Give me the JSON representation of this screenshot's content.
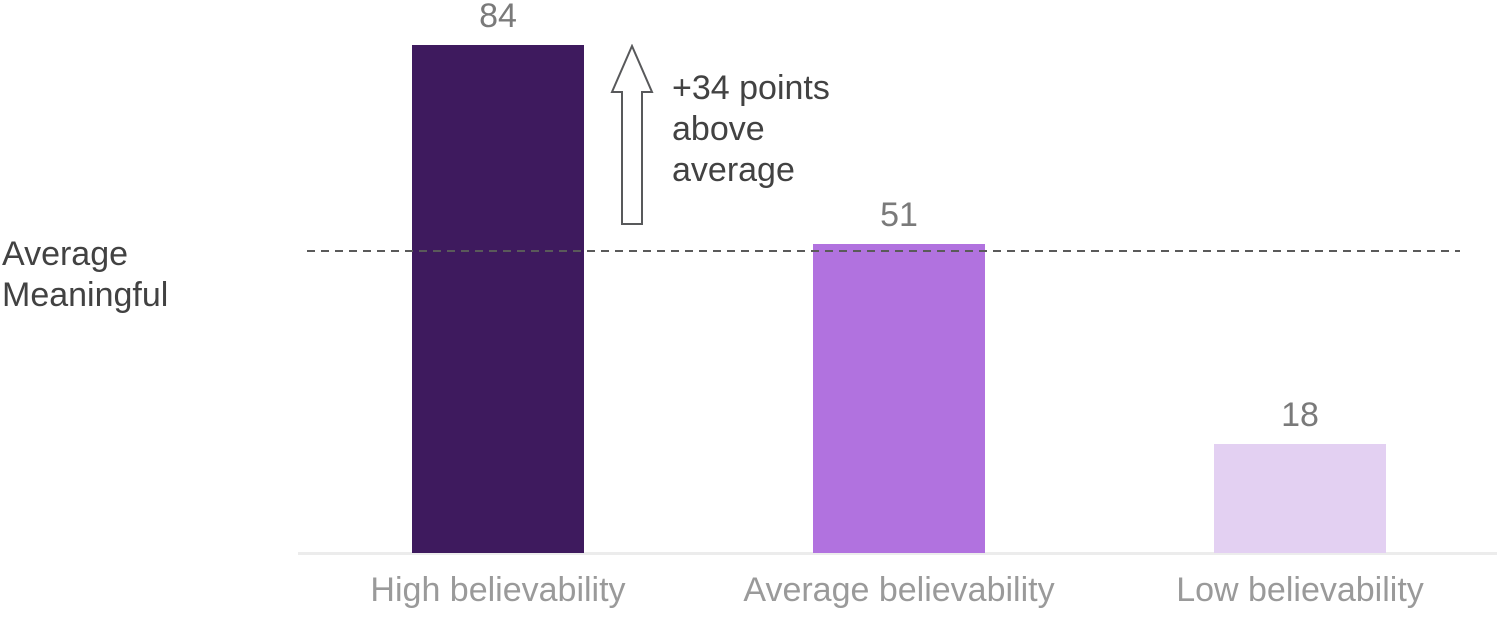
{
  "chart_data": {
    "type": "bar",
    "title": "",
    "xlabel": "",
    "ylabel": "",
    "categories": [
      "High believability",
      "Average believability",
      "Low believability"
    ],
    "values": [
      84,
      51,
      18
    ],
    "points": [
      {
        "label": "High believability",
        "value": 84,
        "color": "#3E1A5E"
      },
      {
        "label": "Average believability",
        "value": 51,
        "color": "#B172DF"
      },
      {
        "label": "Low believability",
        "value": 18,
        "color": "#E3D0F2"
      }
    ],
    "reference_line": {
      "label_line1": "Average",
      "label_line2": "Meaningful",
      "value": 50,
      "style": "dashed"
    },
    "annotation": {
      "lines": [
        "+34 points",
        "above",
        "average"
      ],
      "arrow": "up-arrow"
    },
    "ylim": [
      0,
      92
    ],
    "grid": false,
    "legend": false
  },
  "colors": {
    "value_label": "#7A7A7A",
    "category_label": "#9A9A9A",
    "annotation_text": "#424242",
    "reference_label": "#424242",
    "dashed_line": "#5A5A5A",
    "axis_line": "#ECECEC",
    "arrow_stroke": "#58595B",
    "arrow_fill": "#FFFFFF",
    "background": "#FFFFFF"
  }
}
